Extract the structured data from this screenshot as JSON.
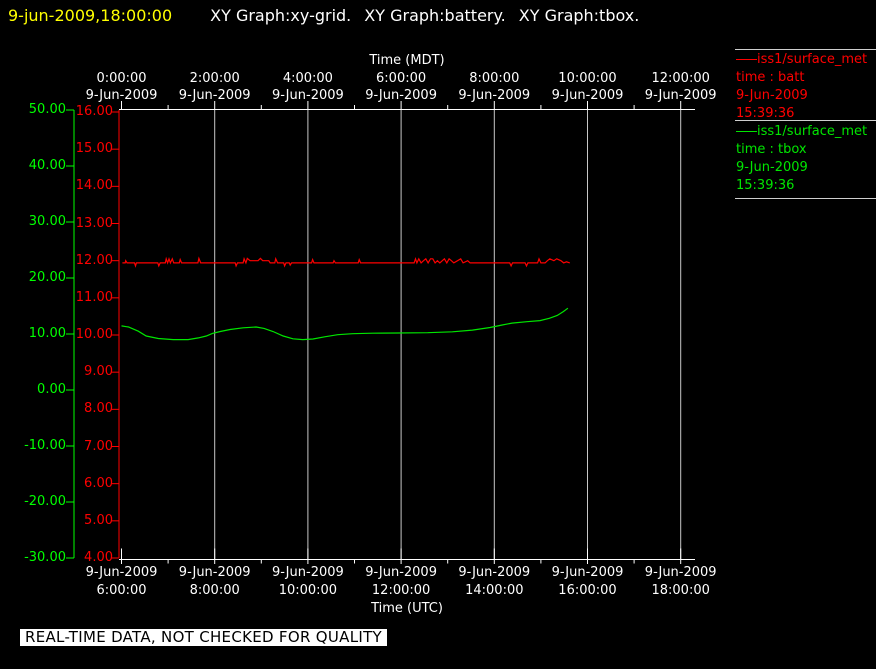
{
  "title_bar": {
    "timestamp": "9-jun-2009,18:00:00",
    "graphs": [
      "XY Graph:xy-grid.",
      "XY Graph:battery.",
      "XY Graph:tbox."
    ]
  },
  "legend": {
    "entries": [
      {
        "source": "iss1/surface_met",
        "channel": "time : batt",
        "date": "9-Jun-2009",
        "time": "15:39:36",
        "color": "#ff0000"
      },
      {
        "source": "iss1/surface_met",
        "channel": "time : tbox",
        "date": "9-Jun-2009",
        "time": "15:39:36",
        "color": "#00e600"
      }
    ]
  },
  "footer": {
    "notice": "REAL-TIME DATA, NOT CHECKED FOR QUALITY"
  },
  "chart_data": {
    "type": "line",
    "layout": {
      "background": "#000000",
      "axis_color": "#ffffff",
      "grid_color": "#c8c8c8",
      "grid": "vertical-only",
      "legend_position": "top-right"
    },
    "x_axis_top": {
      "label": "Time (MDT)",
      "ticks": [
        {
          "time": "0:00:00",
          "date": "9-Jun-2009"
        },
        {
          "time": "2:00:00",
          "date": "9-Jun-2009"
        },
        {
          "time": "4:00:00",
          "date": "9-Jun-2009"
        },
        {
          "time": "6:00:00",
          "date": "9-Jun-2009"
        },
        {
          "time": "8:00:00",
          "date": "9-Jun-2009"
        },
        {
          "time": "10:00:00",
          "date": "9-Jun-2009"
        },
        {
          "time": "12:00:00",
          "date": "9-Jun-2009"
        }
      ]
    },
    "x_axis_bottom": {
      "label": "Time (UTC)",
      "ticks": [
        {
          "date": "9-Jun-2009",
          "time": "6:00:00"
        },
        {
          "date": "9-Jun-2009",
          "time": "8:00:00"
        },
        {
          "date": "9-Jun-2009",
          "time": "10:00:00"
        },
        {
          "date": "9-Jun-2009",
          "time": "12:00:00"
        },
        {
          "date": "9-Jun-2009",
          "time": "14:00:00"
        },
        {
          "date": "9-Jun-2009",
          "time": "16:00:00"
        },
        {
          "date": "9-Jun-2009",
          "time": "18:00:00"
        }
      ],
      "range_hours_utc": [
        6,
        18
      ]
    },
    "y_axis_green": {
      "color": "#00ff00",
      "range": [
        -30,
        50
      ],
      "tick_labels": [
        "50.00",
        "40.00",
        "30.00",
        "20.00",
        "10.00",
        "0.00",
        "-10.00",
        "-20.00",
        "-30.00"
      ]
    },
    "y_axis_red": {
      "color": "#ff0000",
      "range": [
        4,
        16
      ],
      "tick_labels": [
        "16.00",
        "15.00",
        "14.00",
        "13.00",
        "12.00",
        "11.00",
        "10.00",
        "9.00",
        "8.00",
        "7.00",
        "6.00",
        "5.00",
        "4.00"
      ]
    },
    "series": [
      {
        "name": "iss1/surface_met batt",
        "color": "#ff0000",
        "axis": "red",
        "points": [
          [
            6.02,
            11.94
          ],
          [
            6.08,
            11.94
          ],
          [
            6.09,
            12.0
          ],
          [
            6.12,
            11.94
          ],
          [
            6.28,
            11.94
          ],
          [
            6.3,
            11.86
          ],
          [
            6.32,
            11.94
          ],
          [
            6.78,
            11.94
          ],
          [
            6.8,
            11.86
          ],
          [
            6.83,
            11.94
          ],
          [
            6.94,
            11.94
          ],
          [
            6.96,
            12.05
          ],
          [
            6.99,
            11.94
          ],
          [
            7.02,
            12.05
          ],
          [
            7.05,
            11.94
          ],
          [
            7.09,
            12.05
          ],
          [
            7.12,
            11.94
          ],
          [
            7.24,
            11.94
          ],
          [
            7.26,
            12.03
          ],
          [
            7.29,
            11.94
          ],
          [
            7.64,
            11.94
          ],
          [
            7.66,
            12.06
          ],
          [
            7.7,
            11.94
          ],
          [
            8.44,
            11.94
          ],
          [
            8.46,
            11.86
          ],
          [
            8.49,
            11.94
          ],
          [
            8.61,
            11.94
          ],
          [
            8.63,
            12.05
          ],
          [
            8.67,
            11.94
          ],
          [
            8.7,
            12.06
          ],
          [
            8.76,
            12.0
          ],
          [
            8.93,
            12.0
          ],
          [
            8.98,
            12.06
          ],
          [
            9.03,
            12.0
          ],
          [
            9.16,
            12.0
          ],
          [
            9.19,
            11.94
          ],
          [
            9.29,
            11.94
          ],
          [
            9.31,
            12.05
          ],
          [
            9.35,
            11.94
          ],
          [
            9.48,
            11.94
          ],
          [
            9.5,
            11.86
          ],
          [
            9.53,
            11.94
          ],
          [
            9.6,
            11.94
          ],
          [
            9.62,
            11.88
          ],
          [
            9.65,
            11.94
          ],
          [
            10.08,
            11.94
          ],
          [
            10.1,
            12.03
          ],
          [
            10.13,
            11.94
          ],
          [
            10.54,
            11.94
          ],
          [
            10.56,
            12.0
          ],
          [
            10.59,
            11.94
          ],
          [
            11.08,
            11.94
          ],
          [
            11.1,
            12.03
          ],
          [
            11.13,
            11.94
          ],
          [
            12.28,
            11.94
          ],
          [
            12.31,
            12.05
          ],
          [
            12.34,
            11.94
          ],
          [
            12.38,
            12.05
          ],
          [
            12.43,
            11.94
          ],
          [
            12.48,
            12.0
          ],
          [
            12.53,
            12.05
          ],
          [
            12.58,
            11.94
          ],
          [
            12.63,
            12.05
          ],
          [
            12.68,
            12.05
          ],
          [
            12.73,
            11.94
          ],
          [
            12.78,
            12.0
          ],
          [
            12.83,
            11.94
          ],
          [
            12.93,
            12.05
          ],
          [
            12.98,
            11.94
          ],
          [
            13.03,
            12.05
          ],
          [
            13.08,
            12.0
          ],
          [
            13.13,
            11.94
          ],
          [
            13.28,
            12.05
          ],
          [
            13.33,
            11.94
          ],
          [
            13.43,
            12.0
          ],
          [
            13.48,
            11.94
          ],
          [
            14.33,
            11.94
          ],
          [
            14.36,
            11.86
          ],
          [
            14.39,
            11.94
          ],
          [
            14.66,
            11.94
          ],
          [
            14.69,
            11.86
          ],
          [
            14.72,
            11.94
          ],
          [
            14.93,
            11.94
          ],
          [
            14.96,
            12.05
          ],
          [
            15.0,
            11.94
          ],
          [
            15.09,
            11.94
          ],
          [
            15.14,
            12.0
          ],
          [
            15.19,
            12.05
          ],
          [
            15.28,
            12.0
          ],
          [
            15.34,
            12.05
          ],
          [
            15.43,
            12.0
          ],
          [
            15.49,
            11.94
          ],
          [
            15.55,
            11.97
          ],
          [
            15.62,
            11.94
          ]
        ]
      },
      {
        "name": "iss1/surface_met tbox",
        "color": "#00e600",
        "axis": "green",
        "points": [
          [
            6.0,
            11.45
          ],
          [
            6.15,
            11.25
          ],
          [
            6.36,
            10.5
          ],
          [
            6.53,
            9.65
          ],
          [
            6.79,
            9.2
          ],
          [
            7.11,
            9.0
          ],
          [
            7.43,
            9.0
          ],
          [
            7.65,
            9.3
          ],
          [
            7.82,
            9.65
          ],
          [
            7.95,
            10.1
          ],
          [
            8.12,
            10.45
          ],
          [
            8.33,
            10.8
          ],
          [
            8.61,
            11.1
          ],
          [
            8.89,
            11.25
          ],
          [
            9.06,
            11.0
          ],
          [
            9.25,
            10.45
          ],
          [
            9.47,
            9.65
          ],
          [
            9.68,
            9.15
          ],
          [
            9.89,
            9.0
          ],
          [
            10.11,
            9.1
          ],
          [
            10.36,
            9.5
          ],
          [
            10.64,
            9.87
          ],
          [
            10.96,
            10.05
          ],
          [
            11.39,
            10.14
          ],
          [
            11.93,
            10.18
          ],
          [
            12.57,
            10.23
          ],
          [
            13.1,
            10.4
          ],
          [
            13.53,
            10.7
          ],
          [
            13.91,
            11.16
          ],
          [
            14.17,
            11.6
          ],
          [
            14.38,
            11.95
          ],
          [
            14.7,
            12.2
          ],
          [
            14.98,
            12.4
          ],
          [
            15.18,
            12.8
          ],
          [
            15.35,
            13.3
          ],
          [
            15.48,
            14.0
          ],
          [
            15.58,
            14.6
          ]
        ]
      }
    ]
  }
}
